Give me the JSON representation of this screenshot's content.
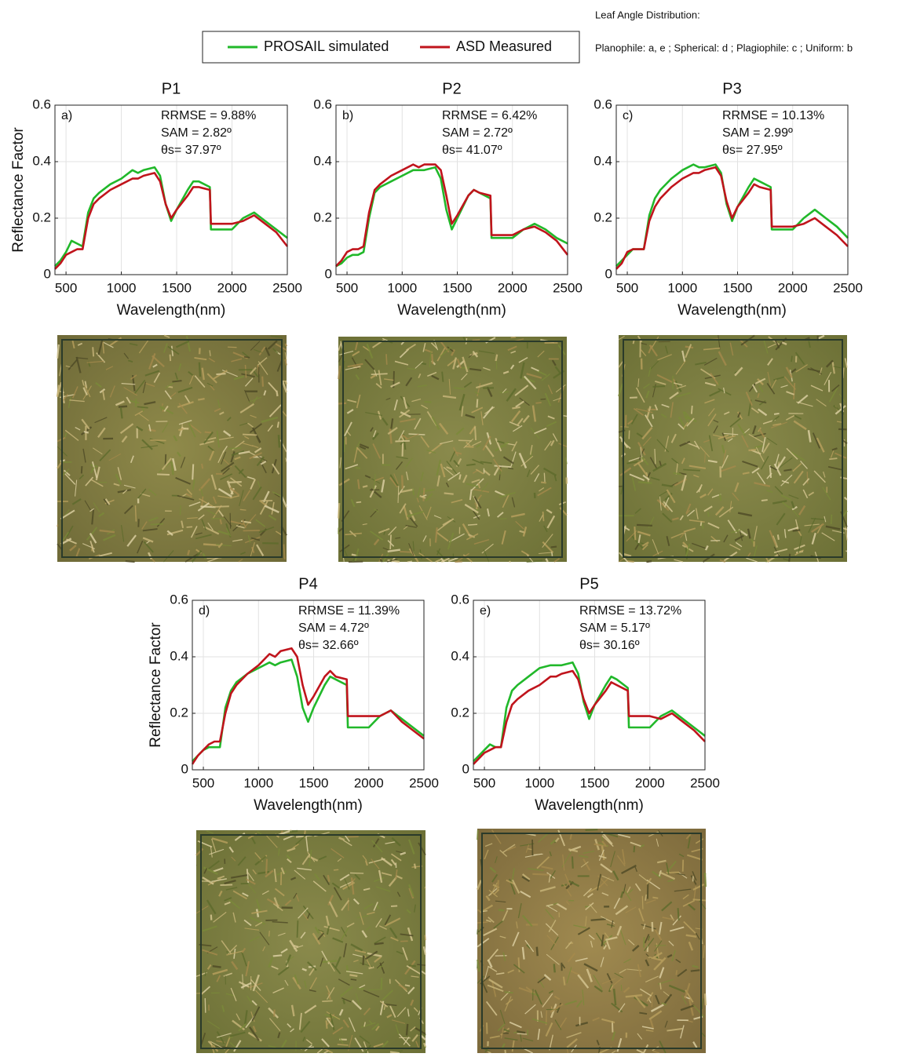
{
  "legend": {
    "entries": [
      {
        "name": "PROSAIL simulated",
        "color": "#21b82a"
      },
      {
        "name": "ASD Measured",
        "color": "#c0141c"
      }
    ]
  },
  "notes": {
    "title": "Leaf Angle Distribution:",
    "text": "Planophile: a, e ; Spherical: d ; Plagiophile: c ; Uniform: b"
  },
  "chart_data": [
    {
      "type": "line",
      "title": "P1",
      "panel_label": "a)",
      "annotations": [
        "RRMSE = 9.88%",
        "SAM = 2.82º",
        "θs= 37.97º"
      ],
      "xlabel": "Wavelength(nm)",
      "ylabel": "Reflectance Factor",
      "x": [
        400,
        450,
        500,
        550,
        600,
        650,
        700,
        750,
        800,
        900,
        1000,
        1100,
        1150,
        1200,
        1300,
        1350,
        1400,
        1450,
        1500,
        1600,
        1650,
        1700,
        1800,
        1810,
        1900,
        2000,
        2100,
        2200,
        2300,
        2400,
        2500
      ],
      "series": [
        {
          "color": "#21b82a",
          "values": [
            0.03,
            0.05,
            0.08,
            0.12,
            0.11,
            0.1,
            0.22,
            0.27,
            0.29,
            0.32,
            0.34,
            0.37,
            0.36,
            0.37,
            0.38,
            0.35,
            0.25,
            0.19,
            0.23,
            0.3,
            0.33,
            0.33,
            0.31,
            0.16,
            0.16,
            0.16,
            0.2,
            0.22,
            0.19,
            0.16,
            0.13
          ]
        },
        {
          "color": "#c0141c",
          "values": [
            0.02,
            0.04,
            0.07,
            0.08,
            0.09,
            0.09,
            0.2,
            0.25,
            0.27,
            0.3,
            0.32,
            0.34,
            0.34,
            0.35,
            0.36,
            0.33,
            0.25,
            0.2,
            0.23,
            0.28,
            0.31,
            0.31,
            0.3,
            0.18,
            0.18,
            0.18,
            0.19,
            0.21,
            0.18,
            0.15,
            0.1
          ]
        }
      ],
      "xlim": [
        400,
        2500
      ],
      "ylim": [
        0,
        0.6
      ],
      "xticks": [
        500,
        1000,
        1500,
        2000,
        2500
      ],
      "yticks": [
        0,
        0.2,
        0.4,
        0.6
      ],
      "grid": true
    },
    {
      "type": "line",
      "title": "P2",
      "panel_label": "b)",
      "annotations": [
        "RRMSE = 6.42%",
        "SAM = 2.72º",
        "θs= 41.07º"
      ],
      "xlabel": "Wavelength(nm)",
      "x": [
        400,
        450,
        500,
        550,
        600,
        650,
        700,
        750,
        800,
        900,
        1000,
        1100,
        1150,
        1200,
        1300,
        1350,
        1400,
        1450,
        1500,
        1600,
        1650,
        1700,
        1800,
        1810,
        1900,
        2000,
        2100,
        2200,
        2300,
        2400,
        2500
      ],
      "series": [
        {
          "color": "#21b82a",
          "values": [
            0.03,
            0.04,
            0.06,
            0.07,
            0.07,
            0.08,
            0.2,
            0.29,
            0.31,
            0.33,
            0.35,
            0.37,
            0.37,
            0.37,
            0.38,
            0.34,
            0.23,
            0.16,
            0.2,
            0.28,
            0.3,
            0.29,
            0.27,
            0.13,
            0.13,
            0.13,
            0.16,
            0.18,
            0.16,
            0.13,
            0.11
          ]
        },
        {
          "color": "#c0141c",
          "values": [
            0.03,
            0.05,
            0.08,
            0.09,
            0.09,
            0.1,
            0.22,
            0.3,
            0.32,
            0.35,
            0.37,
            0.39,
            0.38,
            0.39,
            0.39,
            0.37,
            0.28,
            0.18,
            0.21,
            0.28,
            0.3,
            0.29,
            0.28,
            0.14,
            0.14,
            0.14,
            0.16,
            0.17,
            0.15,
            0.12,
            0.07
          ]
        }
      ],
      "xlim": [
        400,
        2500
      ],
      "ylim": [
        0,
        0.6
      ],
      "xticks": [
        500,
        1000,
        1500,
        2000,
        2500
      ],
      "yticks": [
        0,
        0.2,
        0.4,
        0.6
      ],
      "grid": true
    },
    {
      "type": "line",
      "title": "P3",
      "panel_label": "c)",
      "annotations": [
        "RRMSE = 10.13%",
        "SAM = 2.99º",
        "θs= 27.95º"
      ],
      "xlabel": "Wavelength(nm)",
      "x": [
        400,
        450,
        500,
        550,
        600,
        650,
        700,
        750,
        800,
        900,
        1000,
        1100,
        1150,
        1200,
        1300,
        1350,
        1400,
        1450,
        1500,
        1600,
        1650,
        1700,
        1800,
        1810,
        1900,
        2000,
        2100,
        2200,
        2300,
        2400,
        2500
      ],
      "series": [
        {
          "color": "#21b82a",
          "values": [
            0.03,
            0.05,
            0.07,
            0.09,
            0.09,
            0.09,
            0.21,
            0.27,
            0.3,
            0.34,
            0.37,
            0.39,
            0.38,
            0.38,
            0.39,
            0.36,
            0.25,
            0.19,
            0.24,
            0.31,
            0.34,
            0.33,
            0.31,
            0.16,
            0.16,
            0.16,
            0.2,
            0.23,
            0.2,
            0.17,
            0.13
          ]
        },
        {
          "color": "#c0141c",
          "values": [
            0.02,
            0.04,
            0.08,
            0.09,
            0.09,
            0.09,
            0.19,
            0.24,
            0.27,
            0.31,
            0.34,
            0.36,
            0.36,
            0.37,
            0.38,
            0.35,
            0.26,
            0.2,
            0.24,
            0.29,
            0.32,
            0.31,
            0.3,
            0.17,
            0.17,
            0.17,
            0.18,
            0.2,
            0.17,
            0.14,
            0.1
          ]
        }
      ],
      "xlim": [
        400,
        2500
      ],
      "ylim": [
        0,
        0.6
      ],
      "xticks": [
        500,
        1000,
        1500,
        2000,
        2500
      ],
      "yticks": [
        0,
        0.2,
        0.4,
        0.6
      ],
      "grid": true
    },
    {
      "type": "line",
      "title": "P4",
      "panel_label": "d)",
      "annotations": [
        "RRMSE = 11.39%",
        "SAM = 4.72º",
        "θs= 32.66º"
      ],
      "xlabel": "Wavelength(nm)",
      "ylabel": "Reflectance Factor",
      "x": [
        400,
        450,
        500,
        550,
        600,
        650,
        700,
        750,
        800,
        900,
        1000,
        1100,
        1150,
        1200,
        1300,
        1350,
        1400,
        1450,
        1500,
        1600,
        1650,
        1700,
        1800,
        1810,
        1900,
        2000,
        2100,
        2200,
        2300,
        2400,
        2500
      ],
      "series": [
        {
          "color": "#21b82a",
          "values": [
            0.03,
            0.05,
            0.07,
            0.08,
            0.08,
            0.08,
            0.22,
            0.28,
            0.31,
            0.34,
            0.36,
            0.38,
            0.37,
            0.38,
            0.39,
            0.33,
            0.22,
            0.17,
            0.22,
            0.3,
            0.33,
            0.32,
            0.3,
            0.15,
            0.15,
            0.15,
            0.19,
            0.21,
            0.18,
            0.15,
            0.12
          ]
        },
        {
          "color": "#c0141c",
          "values": [
            0.02,
            0.05,
            0.07,
            0.09,
            0.1,
            0.1,
            0.2,
            0.27,
            0.3,
            0.34,
            0.37,
            0.41,
            0.4,
            0.42,
            0.43,
            0.4,
            0.3,
            0.23,
            0.26,
            0.33,
            0.35,
            0.33,
            0.32,
            0.19,
            0.19,
            0.19,
            0.19,
            0.21,
            0.17,
            0.14,
            0.11
          ]
        }
      ],
      "xlim": [
        400,
        2500
      ],
      "ylim": [
        0,
        0.6
      ],
      "xticks": [
        500,
        1000,
        1500,
        2000,
        2500
      ],
      "yticks": [
        0,
        0.2,
        0.4,
        0.6
      ],
      "grid": true
    },
    {
      "type": "line",
      "title": "P5",
      "panel_label": "e)",
      "annotations": [
        "RRMSE = 13.72%",
        "SAM = 5.17º",
        "θs= 30.16º"
      ],
      "xlabel": "Wavelength(nm)",
      "x": [
        400,
        450,
        500,
        550,
        600,
        650,
        700,
        750,
        800,
        900,
        1000,
        1100,
        1150,
        1200,
        1300,
        1350,
        1400,
        1450,
        1500,
        1600,
        1650,
        1700,
        1800,
        1810,
        1900,
        2000,
        2100,
        2200,
        2300,
        2400,
        2500
      ],
      "series": [
        {
          "color": "#21b82a",
          "values": [
            0.03,
            0.05,
            0.07,
            0.09,
            0.08,
            0.08,
            0.22,
            0.28,
            0.3,
            0.33,
            0.36,
            0.37,
            0.37,
            0.37,
            0.38,
            0.34,
            0.24,
            0.18,
            0.23,
            0.3,
            0.33,
            0.32,
            0.29,
            0.15,
            0.15,
            0.15,
            0.19,
            0.21,
            0.18,
            0.15,
            0.12
          ]
        },
        {
          "color": "#c0141c",
          "values": [
            0.02,
            0.04,
            0.06,
            0.07,
            0.08,
            0.08,
            0.17,
            0.23,
            0.25,
            0.28,
            0.3,
            0.33,
            0.33,
            0.34,
            0.35,
            0.32,
            0.25,
            0.2,
            0.23,
            0.28,
            0.31,
            0.3,
            0.28,
            0.19,
            0.19,
            0.19,
            0.18,
            0.2,
            0.17,
            0.14,
            0.1
          ]
        }
      ],
      "xlim": [
        400,
        2500
      ],
      "ylim": [
        0,
        0.6
      ],
      "xticks": [
        500,
        1000,
        1500,
        2000,
        2500
      ],
      "yticks": [
        0,
        0.2,
        0.4,
        0.6
      ],
      "grid": true
    }
  ]
}
